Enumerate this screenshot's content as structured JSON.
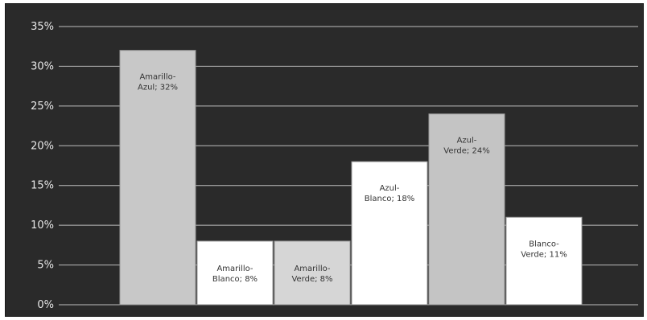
{
  "chart_data": {
    "type": "bar",
    "categories": [
      "Amarillo-Azul",
      "Amarillo-Blanco",
      "Amarillo-Verde",
      "Azul-Blanco",
      "Azul-Verde",
      "Blanco-Verde"
    ],
    "values": [
      32,
      8,
      8,
      18,
      24,
      11
    ],
    "data_labels": [
      [
        "Amarillo-",
        "Azul; 32%"
      ],
      [
        "Amarillo-",
        "Blanco; 8%"
      ],
      [
        "Amarillo-",
        "Verde; 8%"
      ],
      [
        "Azul-",
        "Blanco; 18%"
      ],
      [
        "Azul-",
        "Verde; 24%"
      ],
      [
        "Blanco-",
        "Verde; 11%"
      ]
    ],
    "bar_colors": [
      "#c8c8c8",
      "#ffffff",
      "#d6d6d6",
      "#ffffff",
      "#c4c4c4",
      "#ffffff"
    ],
    "yticks": [
      "0%",
      "5%",
      "10%",
      "15%",
      "20%",
      "25%",
      "30%",
      "35%"
    ],
    "ylim": [
      0,
      35
    ],
    "title": "",
    "xlabel": "",
    "ylabel": "",
    "grid": true,
    "legend": "none",
    "background_color": "#2a2a2a",
    "grid_color": "#bdbdbd"
  }
}
